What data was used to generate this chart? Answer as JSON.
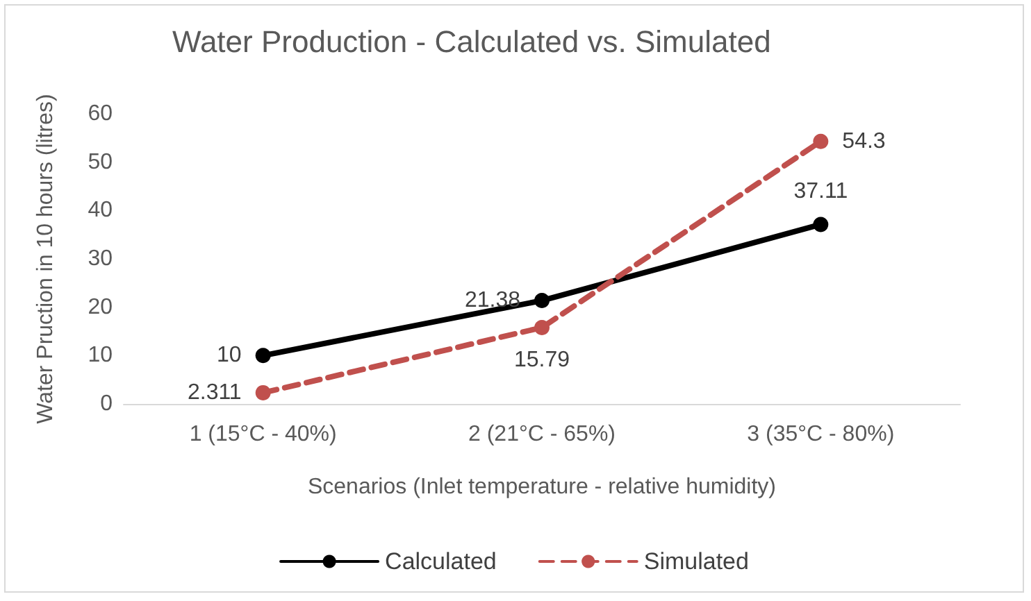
{
  "chart_data": {
    "type": "line",
    "title": "Water Production - Calculated vs. Simulated",
    "xlabel": "Scenarios (Inlet temperature - relative humidity)",
    "ylabel": "Water Pruction in 10 hours (litres)",
    "categories": [
      "1 (15°C - 40%)",
      "2 (21°C - 65%)",
      "3 (35°C - 80%)"
    ],
    "series": [
      {
        "name": "Calculated",
        "color": "#000000",
        "values": [
          10,
          21.38,
          37.11
        ],
        "line_style": "solid"
      },
      {
        "name": "Simulated",
        "color": "#c0504d",
        "values": [
          2.311,
          15.79,
          54.3
        ],
        "line_style": "dashed"
      }
    ],
    "ylim": [
      0,
      60
    ],
    "yticks": [
      0,
      10,
      20,
      30,
      40,
      50,
      60
    ],
    "grid": false,
    "legend": "bottom",
    "marker": "circle",
    "data_labels": true
  }
}
